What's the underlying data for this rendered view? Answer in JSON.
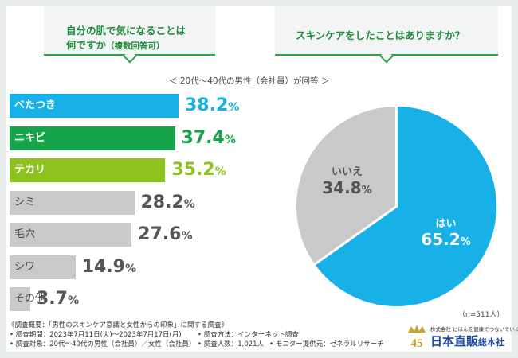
{
  "questions": {
    "q1_line1": "自分の肌で気になることは",
    "q1_line2": "何ですか",
    "q1_note": "（複数回答可）",
    "q2": "スキンケアをしたことはありますか？"
  },
  "respondent_note": "＜ 20代〜40代の男性（会社員）が回答 ＞",
  "sample_note": "（n=511人）",
  "colors": {
    "blue": "#17b1e8",
    "green": "#16a34a",
    "lime": "#8dc21f",
    "gray": "#c9c9c9",
    "green_text": "#1f8a3b"
  },
  "chart_data": [
    {
      "type": "bar",
      "title": "自分の肌で気になることは何ですか（複数回答可）",
      "orientation": "horizontal",
      "categories": [
        "べたつき",
        "ニキビ",
        "テカリ",
        "シミ",
        "毛穴",
        "シワ",
        "その他"
      ],
      "values": [
        38.2,
        37.4,
        35.2,
        28.2,
        27.6,
        14.9,
        3.7
      ],
      "unit": "%",
      "value_display": [
        "38.2",
        "37.4",
        "35.2",
        "28.2",
        "27.6",
        "14.9",
        "3.7"
      ],
      "bar_colors": [
        "blue",
        "green",
        "lime",
        "gray",
        "gray",
        "gray",
        "gray"
      ],
      "xlim": [
        0,
        38.2
      ]
    },
    {
      "type": "pie",
      "title": "スキンケアをしたことはありますか？",
      "labels": [
        "はい",
        "いいえ"
      ],
      "values": [
        65.2,
        34.8
      ],
      "value_display": [
        "65.2",
        "34.8"
      ],
      "unit": "%",
      "slice_colors": [
        "blue",
        "gray"
      ]
    }
  ],
  "footer": {
    "line1": "《調査概要：「男性のスキンケア意識と女性からの印象」に関する調査》",
    "line2a": "• 調査期間：2023年7月11日(火)〜2023年7月17日(月)",
    "line2b": "• 調査方法：インターネット調査",
    "line3a": "• 調査対象：20代〜40代の男性（会社員）／女性（会社員）",
    "line3b": "• 調査人数：1,021人",
    "line3c": "• モニター提供元：ゼネラルリサーチ"
  },
  "logo": {
    "anniversary": "45",
    "company_prefix": "株式会社",
    "tagline": "にほんを健康でつないでいく",
    "name": "日本直販",
    "suffix": "総本社"
  }
}
